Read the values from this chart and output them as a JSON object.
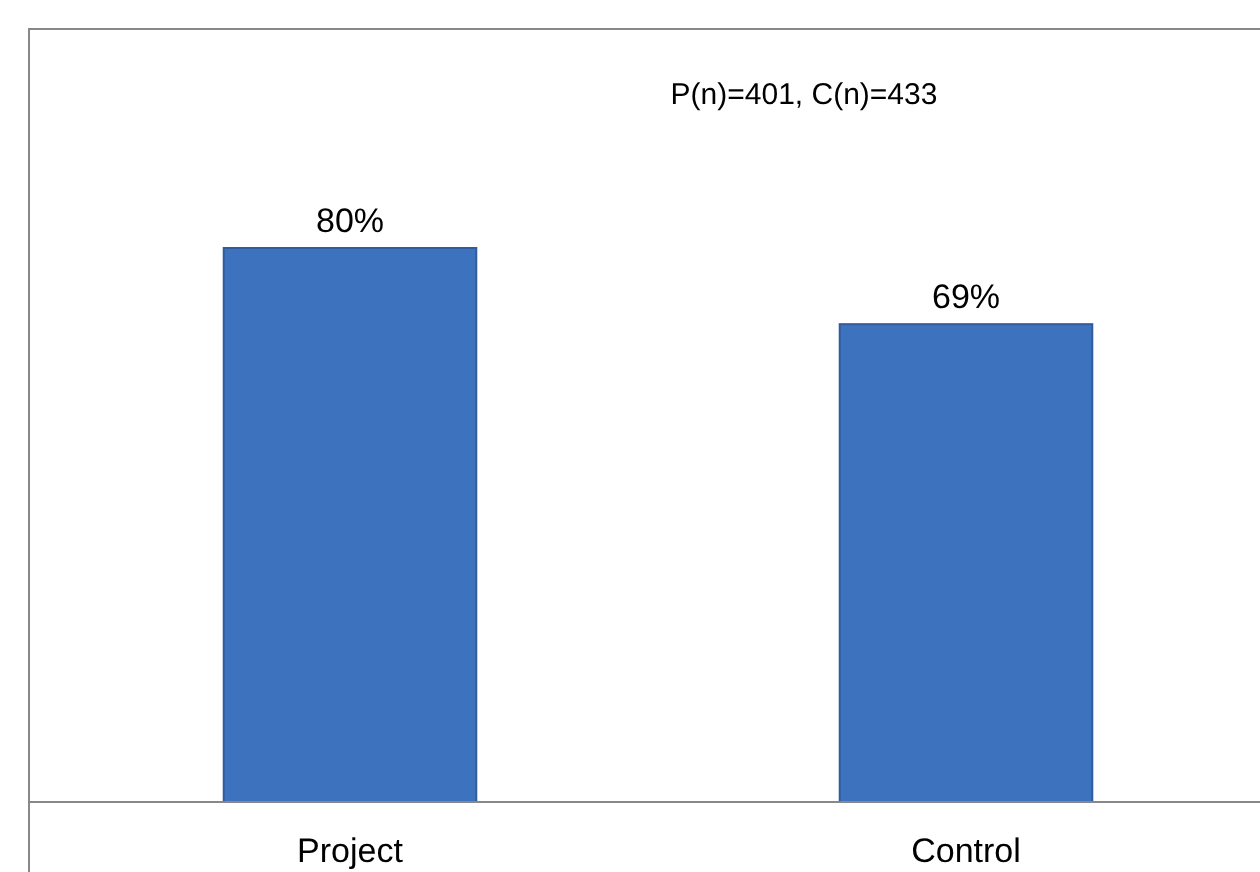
{
  "chart_data": {
    "type": "bar",
    "categories": [
      "Project",
      "Control"
    ],
    "values": [
      80,
      69
    ],
    "value_labels": [
      "80%",
      "69%"
    ],
    "color": "#3d72bf",
    "tick_labels": "x",
    "annotations": [
      "P(n)=401, C(n)=433"
    ]
  }
}
